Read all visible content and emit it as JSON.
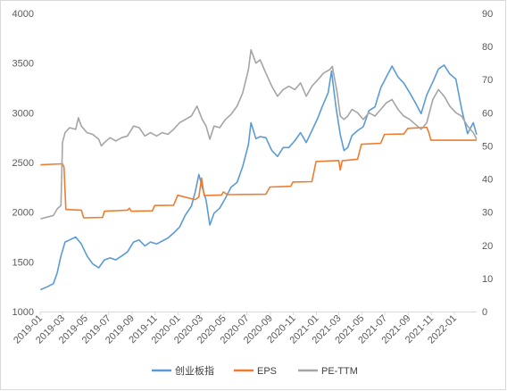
{
  "chart_data": {
    "type": "line",
    "title": "",
    "xlabel": "",
    "ylabel": "",
    "y2label": "",
    "x_ticks": [
      "2019-01",
      "2019-03",
      "2019-05",
      "2019-07",
      "2019-09",
      "2019-11",
      "2020-01",
      "2020-03",
      "2020-05",
      "2020-07",
      "2020-09",
      "2020-11",
      "2021-01",
      "2021-03",
      "2021-05",
      "2021-07",
      "2021-09",
      "2021-11",
      "2022-01"
    ],
    "ylim": [
      1000,
      4000
    ],
    "y_ticks": [
      1000,
      1500,
      2000,
      2500,
      3000,
      3500,
      4000
    ],
    "y2lim": [
      0,
      90
    ],
    "y2_ticks": [
      0,
      10,
      20,
      30,
      40,
      50,
      60,
      70,
      80,
      90
    ],
    "grid": false,
    "legend_position": "bottom",
    "series": [
      {
        "name": "创业板指",
        "axis": "left",
        "color": "#5b9bd5",
        "points": [
          [
            "2019-01-02",
            1220
          ],
          [
            "2019-01-20",
            1250
          ],
          [
            "2019-02-05",
            1280
          ],
          [
            "2019-02-15",
            1390
          ],
          [
            "2019-02-25",
            1560
          ],
          [
            "2019-03-08",
            1700
          ],
          [
            "2019-03-20",
            1720
          ],
          [
            "2019-04-05",
            1750
          ],
          [
            "2019-04-20",
            1680
          ],
          [
            "2019-05-05",
            1560
          ],
          [
            "2019-05-20",
            1480
          ],
          [
            "2019-06-05",
            1440
          ],
          [
            "2019-06-20",
            1520
          ],
          [
            "2019-07-05",
            1540
          ],
          [
            "2019-07-20",
            1520
          ],
          [
            "2019-08-05",
            1560
          ],
          [
            "2019-08-20",
            1600
          ],
          [
            "2019-09-05",
            1700
          ],
          [
            "2019-09-20",
            1720
          ],
          [
            "2019-10-05",
            1660
          ],
          [
            "2019-10-20",
            1700
          ],
          [
            "2019-11-05",
            1680
          ],
          [
            "2019-11-20",
            1710
          ],
          [
            "2019-12-05",
            1740
          ],
          [
            "2019-12-20",
            1790
          ],
          [
            "2020-01-05",
            1850
          ],
          [
            "2020-01-20",
            1970
          ],
          [
            "2020-02-05",
            2060
          ],
          [
            "2020-02-15",
            2200
          ],
          [
            "2020-02-25",
            2380
          ],
          [
            "2020-03-05",
            2250
          ],
          [
            "2020-03-15",
            2120
          ],
          [
            "2020-03-25",
            1870
          ],
          [
            "2020-04-05",
            1990
          ],
          [
            "2020-04-20",
            2040
          ],
          [
            "2020-05-05",
            2140
          ],
          [
            "2020-05-20",
            2250
          ],
          [
            "2020-06-05",
            2300
          ],
          [
            "2020-06-20",
            2460
          ],
          [
            "2020-07-05",
            2680
          ],
          [
            "2020-07-12",
            2900
          ],
          [
            "2020-07-25",
            2740
          ],
          [
            "2020-08-05",
            2760
          ],
          [
            "2020-08-20",
            2750
          ],
          [
            "2020-09-05",
            2620
          ],
          [
            "2020-09-20",
            2560
          ],
          [
            "2020-10-05",
            2650
          ],
          [
            "2020-10-20",
            2650
          ],
          [
            "2020-11-05",
            2720
          ],
          [
            "2020-11-20",
            2800
          ],
          [
            "2020-12-05",
            2700
          ],
          [
            "2020-12-20",
            2820
          ],
          [
            "2021-01-05",
            2950
          ],
          [
            "2021-01-15",
            3050
          ],
          [
            "2021-02-01",
            3200
          ],
          [
            "2021-02-10",
            3420
          ],
          [
            "2021-02-22",
            3050
          ],
          [
            "2021-03-05",
            2780
          ],
          [
            "2021-03-15",
            2620
          ],
          [
            "2021-03-25",
            2650
          ],
          [
            "2021-04-05",
            2770
          ],
          [
            "2021-04-20",
            2820
          ],
          [
            "2021-05-05",
            2860
          ],
          [
            "2021-05-20",
            3020
          ],
          [
            "2021-06-05",
            3060
          ],
          [
            "2021-06-20",
            3250
          ],
          [
            "2021-07-05",
            3360
          ],
          [
            "2021-07-20",
            3470
          ],
          [
            "2021-08-05",
            3360
          ],
          [
            "2021-08-20",
            3300
          ],
          [
            "2021-09-05",
            3200
          ],
          [
            "2021-09-20",
            3100
          ],
          [
            "2021-10-05",
            2990
          ],
          [
            "2021-10-20",
            3180
          ],
          [
            "2021-11-05",
            3310
          ],
          [
            "2021-11-20",
            3440
          ],
          [
            "2021-12-05",
            3480
          ],
          [
            "2021-12-20",
            3390
          ],
          [
            "2022-01-05",
            3340
          ],
          [
            "2022-01-20",
            3040
          ],
          [
            "2022-02-05",
            2790
          ],
          [
            "2022-02-20",
            2900
          ],
          [
            "2022-03-01",
            2780
          ]
        ]
      },
      {
        "name": "EPS",
        "axis": "right",
        "color": "#ed7d31",
        "points": [
          [
            "2019-01-02",
            44.3
          ],
          [
            "2019-03-01",
            44.6
          ],
          [
            "2019-03-05",
            43.6
          ],
          [
            "2019-03-10",
            30.8
          ],
          [
            "2019-04-20",
            30.6
          ],
          [
            "2019-04-26",
            28.3
          ],
          [
            "2019-06-15",
            28.4
          ],
          [
            "2019-06-20",
            30.3
          ],
          [
            "2019-08-20",
            30.6
          ],
          [
            "2019-08-25",
            31.2
          ],
          [
            "2019-08-30",
            30.3
          ],
          [
            "2019-10-25",
            30.4
          ],
          [
            "2019-10-31",
            32.0
          ],
          [
            "2019-12-20",
            32.1
          ],
          [
            "2019-12-31",
            35.1
          ],
          [
            "2020-02-15",
            33.8
          ],
          [
            "2020-02-25",
            34.6
          ],
          [
            "2020-03-03",
            40.3
          ],
          [
            "2020-03-10",
            35.0
          ],
          [
            "2020-04-25",
            35.2
          ],
          [
            "2020-04-30",
            36.1
          ],
          [
            "2020-05-10",
            35.3
          ],
          [
            "2020-08-20",
            35.4
          ],
          [
            "2020-08-31",
            37.6
          ],
          [
            "2020-10-25",
            37.8
          ],
          [
            "2020-10-31",
            39.1
          ],
          [
            "2020-12-20",
            39.2
          ],
          [
            "2020-12-31",
            45.3
          ],
          [
            "2021-03-01",
            45.6
          ],
          [
            "2021-03-05",
            42.7
          ],
          [
            "2021-03-10",
            45.5
          ],
          [
            "2021-04-20",
            46.0
          ],
          [
            "2021-04-30",
            50.5
          ],
          [
            "2021-06-20",
            50.8
          ],
          [
            "2021-06-30",
            53.5
          ],
          [
            "2021-08-20",
            53.6
          ],
          [
            "2021-08-31",
            55.3
          ],
          [
            "2021-10-20",
            55.6
          ],
          [
            "2021-10-25",
            54.2
          ],
          [
            "2021-10-31",
            51.7
          ],
          [
            "2022-03-01",
            51.7
          ]
        ]
      },
      {
        "name": "PE-TTM",
        "axis": "right",
        "color": "#a5a5a5",
        "points": [
          [
            "2019-01-02",
            28.0
          ],
          [
            "2019-01-20",
            28.5
          ],
          [
            "2019-02-05",
            29.0
          ],
          [
            "2019-02-15",
            31.0
          ],
          [
            "2019-02-25",
            32.0
          ],
          [
            "2019-03-01",
            51.0
          ],
          [
            "2019-03-08",
            54.0
          ],
          [
            "2019-03-20",
            55.5
          ],
          [
            "2019-04-05",
            55.0
          ],
          [
            "2019-04-12",
            58.5
          ],
          [
            "2019-04-20",
            56.0
          ],
          [
            "2019-05-05",
            54.0
          ],
          [
            "2019-05-20",
            53.5
          ],
          [
            "2019-06-05",
            52.0
          ],
          [
            "2019-06-12",
            50.0
          ],
          [
            "2019-06-20",
            51.0
          ],
          [
            "2019-07-05",
            52.5
          ],
          [
            "2019-07-20",
            51.5
          ],
          [
            "2019-08-05",
            52.5
          ],
          [
            "2019-08-20",
            53.0
          ],
          [
            "2019-09-05",
            56.0
          ],
          [
            "2019-09-20",
            55.5
          ],
          [
            "2019-10-05",
            53.0
          ],
          [
            "2019-10-20",
            54.0
          ],
          [
            "2019-11-05",
            53.0
          ],
          [
            "2019-11-20",
            54.0
          ],
          [
            "2019-12-05",
            53.5
          ],
          [
            "2019-12-20",
            55.0
          ],
          [
            "2020-01-05",
            57.0
          ],
          [
            "2020-01-20",
            58.0
          ],
          [
            "2020-02-05",
            59.0
          ],
          [
            "2020-02-20",
            62.0
          ],
          [
            "2020-03-05",
            58.0
          ],
          [
            "2020-03-15",
            56.0
          ],
          [
            "2020-03-25",
            52.0
          ],
          [
            "2020-04-05",
            56.0
          ],
          [
            "2020-04-20",
            55.5
          ],
          [
            "2020-05-05",
            58.0
          ],
          [
            "2020-05-20",
            59.5
          ],
          [
            "2020-06-05",
            62.0
          ],
          [
            "2020-06-20",
            66.0
          ],
          [
            "2020-07-05",
            73.0
          ],
          [
            "2020-07-12",
            79.0
          ],
          [
            "2020-07-25",
            75.0
          ],
          [
            "2020-08-05",
            76.0
          ],
          [
            "2020-08-20",
            72.0
          ],
          [
            "2020-09-05",
            68.0
          ],
          [
            "2020-09-20",
            65.0
          ],
          [
            "2020-10-05",
            67.0
          ],
          [
            "2020-10-20",
            68.0
          ],
          [
            "2020-11-05",
            67.0
          ],
          [
            "2020-11-20",
            69.0
          ],
          [
            "2020-12-05",
            65.0
          ],
          [
            "2020-12-20",
            68.0
          ],
          [
            "2021-01-05",
            70.0
          ],
          [
            "2021-01-20",
            72.0
          ],
          [
            "2021-02-05",
            73.0
          ],
          [
            "2021-02-12",
            74.0
          ],
          [
            "2021-02-25",
            66.0
          ],
          [
            "2021-03-05",
            59.0
          ],
          [
            "2021-03-15",
            58.0
          ],
          [
            "2021-03-25",
            59.0
          ],
          [
            "2021-04-05",
            61.0
          ],
          [
            "2021-04-20",
            60.0
          ],
          [
            "2021-05-05",
            58.0
          ],
          [
            "2021-05-20",
            60.0
          ],
          [
            "2021-06-05",
            59.0
          ],
          [
            "2021-06-20",
            61.0
          ],
          [
            "2021-07-05",
            63.0
          ],
          [
            "2021-07-20",
            64.0
          ],
          [
            "2021-08-05",
            61.0
          ],
          [
            "2021-08-20",
            59.0
          ],
          [
            "2021-09-05",
            58.0
          ],
          [
            "2021-09-20",
            56.5
          ],
          [
            "2021-10-05",
            55.0
          ],
          [
            "2021-10-20",
            57.0
          ],
          [
            "2021-11-05",
            64.0
          ],
          [
            "2021-11-20",
            67.0
          ],
          [
            "2021-12-05",
            65.0
          ],
          [
            "2021-12-20",
            62.0
          ],
          [
            "2022-01-05",
            60.0
          ],
          [
            "2022-01-20",
            59.0
          ],
          [
            "2022-02-05",
            56.0
          ],
          [
            "2022-02-20",
            54.0
          ],
          [
            "2022-03-01",
            52.0
          ]
        ]
      }
    ]
  }
}
